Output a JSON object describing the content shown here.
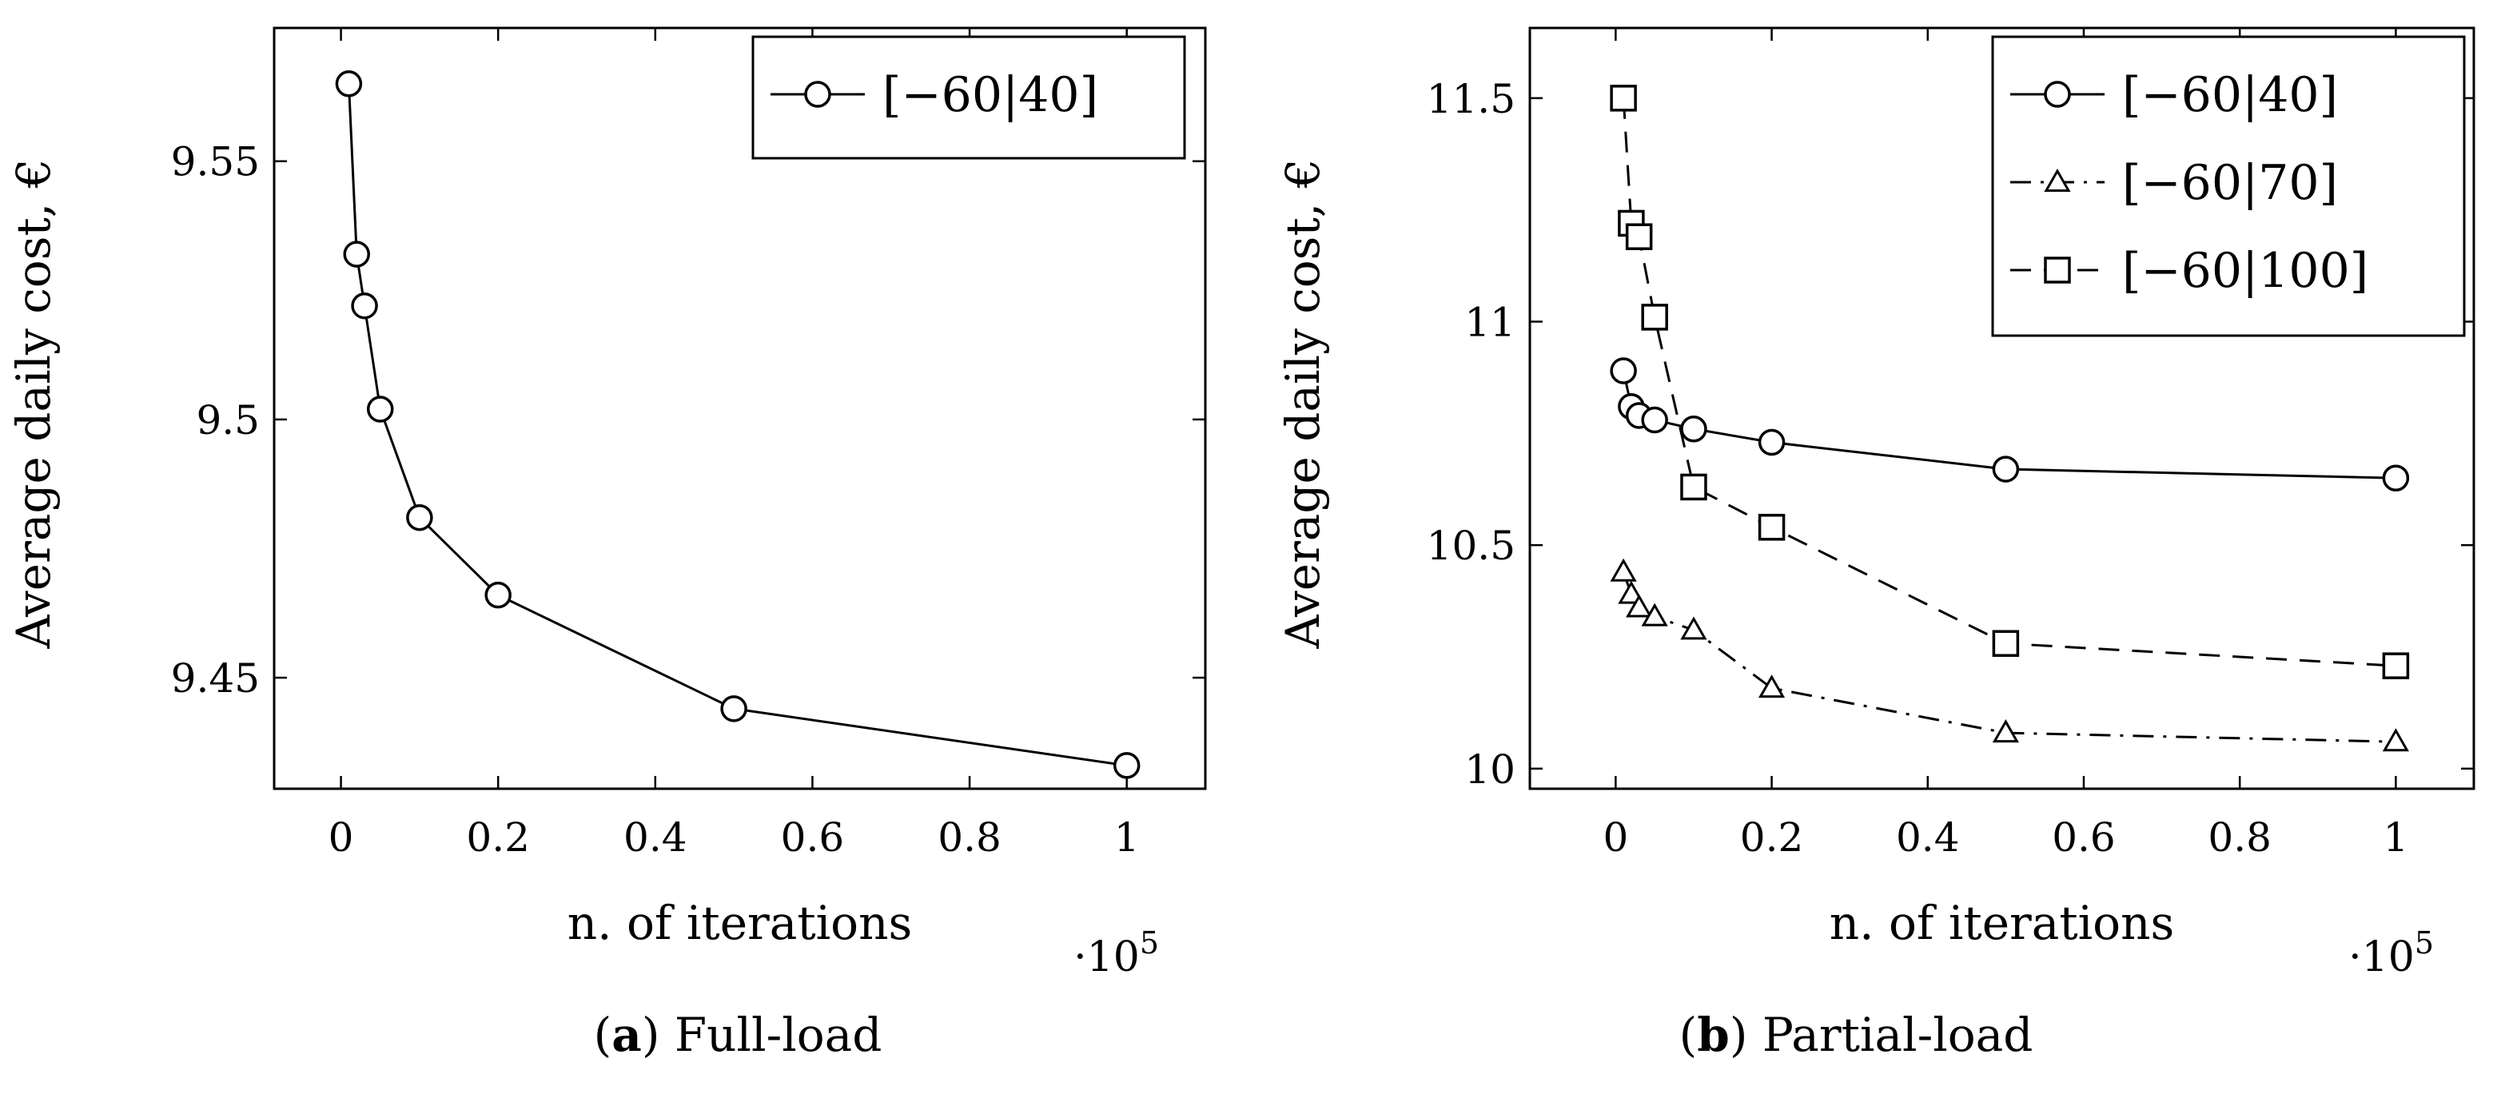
{
  "chart_data": [
    {
      "type": "line",
      "panel": "a",
      "caption_letter": "a",
      "caption_text": "Full-load",
      "xlabel": "n. of iterations",
      "ylabel": "Average daily cost, €",
      "x_multiplier": "·10",
      "x_multiplier_exp": "5",
      "xlim": [
        -0.085,
        1.1
      ],
      "ylim": [
        9.4285,
        9.5758
      ],
      "xticks": [
        0,
        0.2,
        0.4,
        0.6,
        0.8,
        1
      ],
      "xtick_labels": [
        "0",
        "0.2",
        "0.4",
        "0.6",
        "0.8",
        "1"
      ],
      "yticks": [
        9.45,
        9.5,
        9.55
      ],
      "ytick_labels": [
        "9.45",
        "9.5",
        "9.55"
      ],
      "legend_position": "top-right",
      "series": [
        {
          "name": "[−60|40]",
          "marker": "circle",
          "dash": "solid",
          "x": [
            0.01,
            0.02,
            0.03,
            0.05,
            0.1,
            0.2,
            0.5,
            1.0
          ],
          "y": [
            9.565,
            9.532,
            9.522,
            9.502,
            9.481,
            9.466,
            9.444,
            9.433
          ]
        }
      ]
    },
    {
      "type": "line",
      "panel": "b",
      "caption_letter": "b",
      "caption_text": "Partial-load",
      "xlabel": "n. of iterations",
      "ylabel": "Average daily cost, €",
      "x_multiplier": "·10",
      "x_multiplier_exp": "5",
      "xlim": [
        -0.11,
        1.1
      ],
      "ylim": [
        9.955,
        11.657
      ],
      "xticks": [
        0,
        0.2,
        0.4,
        0.6,
        0.8,
        1
      ],
      "xtick_labels": [
        "0",
        "0.2",
        "0.4",
        "0.6",
        "0.8",
        "1"
      ],
      "yticks": [
        10,
        10.5,
        11,
        11.5
      ],
      "ytick_labels": [
        "10",
        "10.5",
        "11",
        "11.5"
      ],
      "legend_position": "top-right",
      "series": [
        {
          "name": "[−60|40]",
          "marker": "circle",
          "dash": "solid",
          "x": [
            0.01,
            0.02,
            0.03,
            0.05,
            0.1,
            0.2,
            0.5,
            1.0
          ],
          "y": [
            10.89,
            10.81,
            10.79,
            10.78,
            10.76,
            10.73,
            10.67,
            10.65
          ]
        },
        {
          "name": "[−60|70]",
          "marker": "triangle",
          "dash": "dashdot",
          "x": [
            0.01,
            0.02,
            0.03,
            0.05,
            0.1,
            0.2,
            0.5,
            1.0
          ],
          "y": [
            10.44,
            10.39,
            10.36,
            10.34,
            10.31,
            10.18,
            10.08,
            10.06
          ]
        },
        {
          "name": "[−60|100]",
          "marker": "square",
          "dash": "dashed",
          "x": [
            0.01,
            0.02,
            0.03,
            0.05,
            0.1,
            0.2,
            0.5,
            1.0
          ],
          "y": [
            11.5,
            11.22,
            11.19,
            11.01,
            10.63,
            10.54,
            10.28,
            10.23
          ]
        }
      ]
    }
  ]
}
